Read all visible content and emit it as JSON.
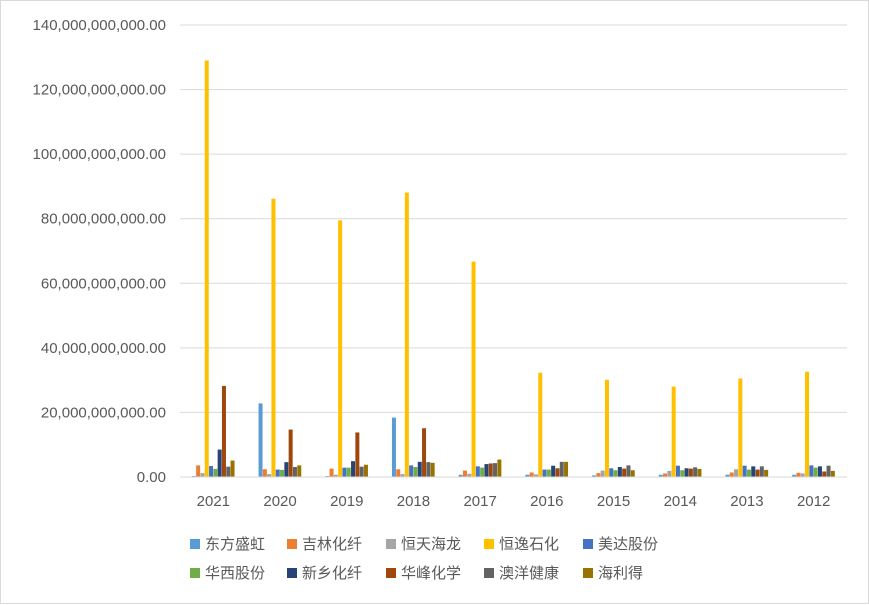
{
  "chart_data": {
    "type": "bar",
    "title": "",
    "xlabel": "",
    "ylabel": "",
    "ylim": [
      0,
      140000000000
    ],
    "yticks": [
      0,
      20000000000,
      40000000000,
      60000000000,
      80000000000,
      100000000000,
      120000000000,
      140000000000
    ],
    "ytick_labels": [
      "0.00",
      "20,000,000,000.00",
      "40,000,000,000.00",
      "60,000,000,000.00",
      "80,000,000,000.00",
      "100,000,000,000.00",
      "120,000,000,000.00",
      "140,000,000,000.00"
    ],
    "grid": true,
    "legend_position": "bottom",
    "categories": [
      "2021",
      "2020",
      "2019",
      "2018",
      "2017",
      "2016",
      "2015",
      "2014",
      "2013",
      "2012"
    ],
    "series": [
      {
        "name": "东方盛虹",
        "color": "#5b9bd5",
        "values": [
          300000000,
          22800000000,
          300000000,
          18400000000,
          700000000,
          700000000,
          500000000,
          700000000,
          700000000,
          700000000
        ]
      },
      {
        "name": "吉林化纤",
        "color": "#ed7d31",
        "values": [
          3600000000,
          2400000000,
          2600000000,
          2400000000,
          2000000000,
          1400000000,
          1200000000,
          1100000000,
          1400000000,
          1300000000
        ]
      },
      {
        "name": "恒天海龙",
        "color": "#a5a5a5",
        "values": [
          1200000000,
          900000000,
          700000000,
          900000000,
          1000000000,
          800000000,
          2000000000,
          1900000000,
          2400000000,
          1100000000
        ]
      },
      {
        "name": "恒逸石化",
        "color": "#ffc000",
        "values": [
          129000000000,
          86200000000,
          79500000000,
          88100000000,
          66700000000,
          32300000000,
          30100000000,
          28000000000,
          30500000000,
          32600000000
        ]
      },
      {
        "name": "美达股份",
        "color": "#4472c4",
        "values": [
          3400000000,
          2300000000,
          2900000000,
          3600000000,
          3300000000,
          2300000000,
          2700000000,
          3500000000,
          3500000000,
          3600000000
        ]
      },
      {
        "name": "华西股份",
        "color": "#70ad47",
        "values": [
          2500000000,
          2200000000,
          2900000000,
          3100000000,
          2900000000,
          2300000000,
          2100000000,
          2100000000,
          2300000000,
          2900000000
        ]
      },
      {
        "name": "新乡化纤",
        "color": "#264478",
        "values": [
          8500000000,
          4600000000,
          4900000000,
          4700000000,
          4000000000,
          3500000000,
          3100000000,
          2700000000,
          3300000000,
          3300000000
        ]
      },
      {
        "name": "华峰化学",
        "color": "#9e480e",
        "values": [
          28200000000,
          14700000000,
          13800000000,
          15100000000,
          4200000000,
          2700000000,
          2600000000,
          2600000000,
          2300000000,
          1700000000
        ]
      },
      {
        "name": "澳洋健康",
        "color": "#636363",
        "values": [
          3200000000,
          3100000000,
          3200000000,
          4600000000,
          4300000000,
          4700000000,
          3600000000,
          3000000000,
          3300000000,
          3500000000
        ]
      },
      {
        "name": "海利得",
        "color": "#997300",
        "values": [
          5100000000,
          3600000000,
          3800000000,
          4400000000,
          5400000000,
          4700000000,
          2100000000,
          2500000000,
          2200000000,
          1900000000
        ]
      }
    ]
  }
}
